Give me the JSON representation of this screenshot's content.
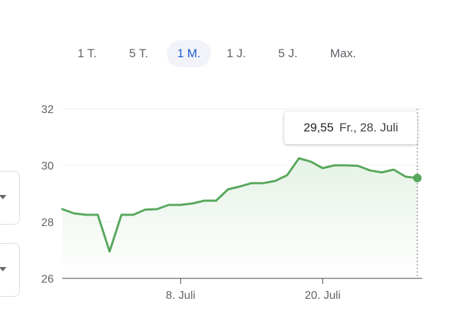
{
  "range_tabs": [
    {
      "label": "1 T.",
      "active": false
    },
    {
      "label": "5 T.",
      "active": false
    },
    {
      "label": "1 M.",
      "active": true
    },
    {
      "label": "1 J.",
      "active": false
    },
    {
      "label": "5 J.",
      "active": false
    },
    {
      "label": "Max.",
      "active": false
    }
  ],
  "tooltip": {
    "value": "29,55",
    "date": "Fr., 28. Juli"
  },
  "colors": {
    "line": "#57a75c",
    "fill_top": "#e6f2e6",
    "grid": "#eeeeee",
    "active_tab": "#1a5bd6"
  },
  "chart_data": {
    "type": "area",
    "title": "",
    "xlabel": "",
    "ylabel": "",
    "ylim": [
      26,
      32
    ],
    "yticks": [
      "32",
      "30",
      "28",
      "26"
    ],
    "xtick_labels": [
      {
        "label": "8. Juli",
        "index": 10
      },
      {
        "label": "20. Juli",
        "index": 22
      }
    ],
    "grid": true,
    "values": [
      28.45,
      28.3,
      28.25,
      28.25,
      26.95,
      28.25,
      28.25,
      28.43,
      28.45,
      28.6,
      28.6,
      28.65,
      28.75,
      28.75,
      29.15,
      29.25,
      29.37,
      29.37,
      29.45,
      29.65,
      30.25,
      30.13,
      29.9,
      30.0,
      30.0,
      29.98,
      29.82,
      29.75,
      29.85,
      29.6,
      29.55
    ],
    "highlight_index": 30
  }
}
